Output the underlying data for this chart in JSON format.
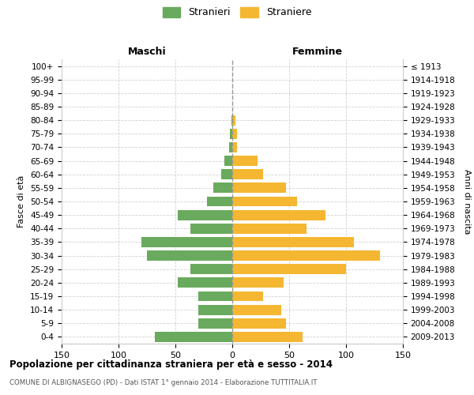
{
  "age_groups": [
    "0-4",
    "5-9",
    "10-14",
    "15-19",
    "20-24",
    "25-29",
    "30-34",
    "35-39",
    "40-44",
    "45-49",
    "50-54",
    "55-59",
    "60-64",
    "65-69",
    "70-74",
    "75-79",
    "80-84",
    "85-89",
    "90-94",
    "95-99",
    "100+"
  ],
  "birth_years": [
    "2009-2013",
    "2004-2008",
    "1999-2003",
    "1994-1998",
    "1989-1993",
    "1984-1988",
    "1979-1983",
    "1974-1978",
    "1969-1973",
    "1964-1968",
    "1959-1963",
    "1954-1958",
    "1949-1953",
    "1944-1948",
    "1939-1943",
    "1934-1938",
    "1929-1933",
    "1924-1928",
    "1919-1923",
    "1914-1918",
    "≤ 1913"
  ],
  "males": [
    68,
    30,
    30,
    30,
    48,
    37,
    75,
    80,
    37,
    48,
    22,
    17,
    10,
    7,
    3,
    2,
    1,
    0,
    0,
    0,
    0
  ],
  "females": [
    62,
    47,
    43,
    27,
    45,
    100,
    130,
    107,
    65,
    82,
    57,
    47,
    27,
    22,
    4,
    4,
    3,
    0,
    0,
    0,
    0
  ],
  "male_color": "#6aaa5e",
  "female_color": "#f5b731",
  "background_color": "#ffffff",
  "grid_color": "#cccccc",
  "xlim": 150,
  "title": "Popolazione per cittadinanza straniera per età e sesso - 2014",
  "subtitle": "COMUNE DI ALBIGNASEGO (PD) - Dati ISTAT 1° gennaio 2014 - Elaborazione TUTTITALIA.IT",
  "header_left": "Maschi",
  "header_right": "Femmine",
  "ylabel_left": "Fasce di età",
  "ylabel_right": "Anni di nascita",
  "legend_male": "Stranieri",
  "legend_female": "Straniere"
}
